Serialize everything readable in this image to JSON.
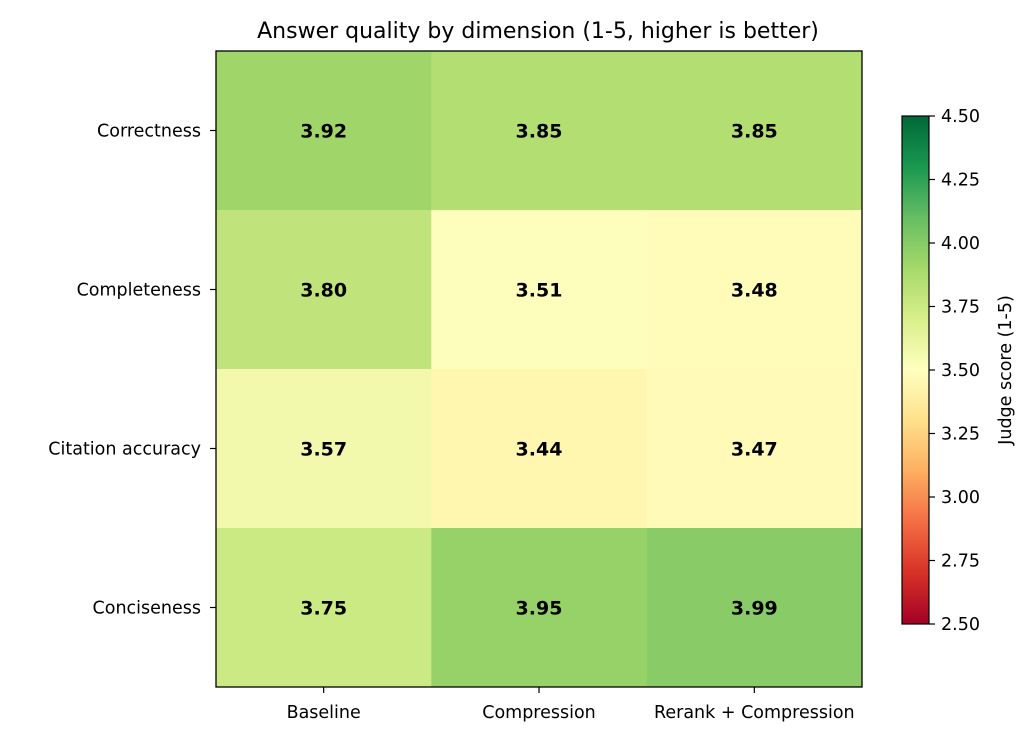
{
  "chart_data": {
    "type": "heatmap",
    "title": "Answer quality by dimension (1-5, higher is better)",
    "x_categories": [
      "Baseline",
      "Compression",
      "Rerank + Compression"
    ],
    "y_categories": [
      "Correctness",
      "Completeness",
      "Citation accuracy",
      "Conciseness"
    ],
    "values": [
      [
        3.92,
        3.85,
        3.85
      ],
      [
        3.8,
        3.51,
        3.48
      ],
      [
        3.57,
        3.44,
        3.47
      ],
      [
        3.75,
        3.95,
        3.99
      ]
    ],
    "value_labels": [
      [
        "3.92",
        "3.85",
        "3.85"
      ],
      [
        "3.80",
        "3.51",
        "3.48"
      ],
      [
        "3.57",
        "3.44",
        "3.47"
      ],
      [
        "3.75",
        "3.95",
        "3.99"
      ]
    ],
    "colorbar": {
      "label": "Judge score (1-5)",
      "range": [
        2.5,
        4.5
      ],
      "ticks": [
        "2.50",
        "2.75",
        "3.00",
        "3.25",
        "3.50",
        "3.75",
        "4.00",
        "4.25",
        "4.50"
      ],
      "tick_values": [
        2.5,
        2.75,
        3.0,
        3.25,
        3.5,
        3.75,
        4.0,
        4.25,
        4.5
      ],
      "colormap": "RdYlGn"
    }
  }
}
